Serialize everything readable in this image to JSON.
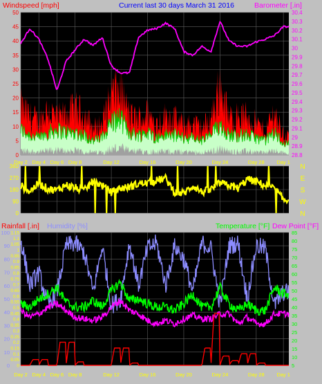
{
  "header": {
    "wind_label": "Windspeed [mph]",
    "title": "Current last 30 days March 31 2016",
    "baro_label": "Barometer [.in]"
  },
  "colors": {
    "background": "#c0c0c0",
    "plot_bg": "#000000",
    "grid": "#606060",
    "wind_gust": "#ff0000",
    "wind_avg": "#c8ffc8",
    "wind_avg_line": "#00cc00",
    "wind_low": "#a0a0a0",
    "baro": "#ff00ff",
    "dir": "#ffff00",
    "rain": "#ff0000",
    "humidity": "#8c8cff",
    "temp": "#00ff00",
    "dew": "#ff00ff",
    "day_label": "#ffff00",
    "wind_axis": "#ff0000",
    "baro_axis": "#ff00ff"
  },
  "chart_data": [
    {
      "type": "line",
      "name": "wind-baro",
      "title": "Current last 30 days March 31 2016",
      "ylabel_left": "Windspeed [mph]",
      "ylabel_right": "Barometer [.in]",
      "ylim_left": [
        0,
        50
      ],
      "yticks_left": [
        "0",
        "5",
        "10",
        "15",
        "20",
        "25",
        "30",
        "35",
        "40",
        "45",
        "50"
      ],
      "ylim_right": [
        28.8,
        30.4
      ],
      "yticks_right": [
        "28.8",
        "28.9",
        "29",
        "29.1",
        "29.2",
        "29.3",
        "29.4",
        "29.5",
        "29.6",
        "29.7",
        "29.8",
        "29.9",
        "30",
        "30.1",
        "30.2",
        "30.3",
        "30.4"
      ],
      "x_day_labels": [
        "Day 2",
        "Day 4",
        "Day 6",
        "Day 8",
        "Day 12",
        "Day 16",
        "Day 20",
        "Day 24",
        "Day 28",
        "Day 1"
      ],
      "x_day_index": [
        0,
        2,
        4,
        6,
        10,
        14,
        18,
        22,
        26,
        29
      ],
      "series": [
        {
          "key": "gust",
          "x": [
            0,
            1,
            2,
            3,
            4,
            5,
            6,
            7,
            8,
            9,
            10,
            11,
            12,
            13,
            14,
            15,
            16,
            17,
            18,
            19,
            20,
            21,
            22,
            23,
            24,
            25,
            26,
            27,
            28,
            29
          ],
          "values": [
            20,
            16,
            14,
            19,
            15,
            17,
            19,
            17,
            11,
            13,
            25,
            27,
            16,
            15,
            17,
            13,
            16,
            15,
            12,
            13,
            11,
            15,
            29,
            15,
            16,
            16,
            13,
            10,
            18,
            8
          ]
        },
        {
          "key": "avg",
          "x": [
            0,
            1,
            2,
            3,
            4,
            5,
            6,
            7,
            8,
            9,
            10,
            11,
            12,
            13,
            14,
            15,
            16,
            17,
            18,
            19,
            20,
            21,
            22,
            23,
            24,
            25,
            26,
            27,
            28,
            29
          ],
          "values": [
            9,
            7,
            6,
            8,
            9,
            8,
            8,
            7,
            5,
            6,
            12,
            13,
            8,
            7,
            8,
            6,
            7,
            7,
            6,
            6,
            5,
            7,
            11,
            7,
            7,
            7,
            6,
            5,
            8,
            4
          ]
        },
        {
          "key": "baro",
          "x": [
            0,
            1,
            2,
            3,
            4,
            5,
            6,
            7,
            8,
            9,
            10,
            11,
            12,
            13,
            14,
            15,
            16,
            17,
            18,
            19,
            20,
            21,
            22,
            23,
            24,
            25,
            26,
            27,
            28,
            29
          ],
          "values": [
            30.05,
            30.22,
            30.1,
            29.88,
            29.52,
            29.85,
            29.98,
            30.1,
            30.03,
            30.12,
            29.8,
            29.72,
            29.72,
            30.12,
            30.2,
            30.22,
            30.28,
            30.22,
            29.96,
            29.92,
            30.02,
            29.96,
            30.3,
            30.08,
            30.02,
            30.02,
            30.07,
            30.1,
            30.14,
            30.24
          ]
        }
      ]
    },
    {
      "type": "scatter",
      "name": "wind-direction",
      "ylim": [
        0,
        360
      ],
      "yticks": [
        "0",
        "90",
        "180",
        "270",
        "360"
      ],
      "compass": [
        "N",
        "W",
        "S",
        "E",
        "N"
      ],
      "x": [
        0,
        1,
        2,
        3,
        4,
        5,
        6,
        7,
        8,
        9,
        10,
        11,
        12,
        13,
        14,
        15,
        16,
        17,
        18,
        19,
        20,
        21,
        22,
        23,
        24,
        25,
        26,
        27,
        28,
        29
      ],
      "values": [
        210,
        165,
        230,
        185,
        175,
        215,
        195,
        170,
        245,
        210,
        160,
        190,
        200,
        225,
        230,
        250,
        265,
        160,
        150,
        210,
        160,
        180,
        230,
        210,
        190,
        260,
        240,
        210,
        190,
        100
      ]
    },
    {
      "type": "line",
      "name": "rain-humidity-temp",
      "ylabel_rain": "Rainfall [.in]",
      "ylabel_humidity": "Humidity [%]",
      "ylabel_temp": "Temperature [°F]",
      "ylabel_dew": "Dew Point [°F]",
      "ylim_humidity": [
        0,
        100
      ],
      "yticks_humidity": [
        "0",
        "10",
        "20",
        "30",
        "40",
        "50",
        "60",
        "70",
        "80",
        "90",
        "100"
      ],
      "ylim_rain": [
        0,
        1.15
      ],
      "yticks_rain": [
        "0",
        "0.05",
        "0.1",
        "0.15",
        "0.2",
        "0.25",
        "0.3",
        "0.35",
        "0.4",
        "0.45",
        "0.5",
        "0.55",
        "0.6",
        "0.65",
        "0.7",
        "0.75",
        "0.8",
        "0.85",
        "0.9",
        "0.95",
        "1",
        "1.05",
        "1.1",
        "1.15"
      ],
      "ylim_temp": [
        5,
        85
      ],
      "yticks_temp": [
        "5",
        "10",
        "15",
        "20",
        "25",
        "30",
        "35",
        "40",
        "45",
        "50",
        "55",
        "60",
        "65",
        "70",
        "75",
        "80",
        "85"
      ],
      "x_day_labels": [
        "Day 2",
        "Day 4",
        "Day 6",
        "Day 8",
        "Day 12",
        "Day 16",
        "Day 20",
        "Day 24",
        "Day 28",
        "Day 1"
      ],
      "x_day_index": [
        0,
        2,
        4,
        6,
        10,
        14,
        18,
        22,
        26,
        29
      ],
      "series": [
        {
          "key": "humidity",
          "x": [
            0,
            1,
            2,
            3,
            4,
            5,
            6,
            7,
            8,
            9,
            10,
            11,
            12,
            13,
            14,
            15,
            16,
            17,
            18,
            19,
            20,
            21,
            22,
            23,
            24,
            25,
            26,
            27,
            28,
            29
          ],
          "values": [
            95,
            60,
            70,
            45,
            55,
            90,
            92,
            85,
            55,
            90,
            45,
            50,
            92,
            60,
            88,
            92,
            60,
            90,
            80,
            55,
            92,
            88,
            45,
            90,
            92,
            50,
            90,
            88,
            45,
            55
          ]
        },
        {
          "key": "temp",
          "x": [
            0,
            1,
            2,
            3,
            4,
            5,
            6,
            7,
            8,
            9,
            10,
            11,
            12,
            13,
            14,
            15,
            16,
            17,
            18,
            19,
            20,
            21,
            22,
            23,
            24,
            25,
            26,
            27,
            28,
            29
          ],
          "values": [
            42,
            40,
            45,
            48,
            52,
            43,
            40,
            40,
            44,
            40,
            50,
            55,
            44,
            45,
            42,
            40,
            40,
            38,
            42,
            48,
            40,
            40,
            52,
            42,
            38,
            42,
            38,
            38,
            52,
            48
          ]
        },
        {
          "key": "dew",
          "x": [
            0,
            1,
            2,
            3,
            4,
            5,
            6,
            7,
            8,
            9,
            10,
            11,
            12,
            13,
            14,
            15,
            16,
            17,
            18,
            19,
            20,
            21,
            22,
            23,
            24,
            25,
            26,
            27,
            28,
            29
          ],
          "values": [
            38,
            34,
            36,
            40,
            42,
            38,
            34,
            33,
            32,
            34,
            40,
            44,
            38,
            36,
            32,
            30,
            32,
            30,
            33,
            35,
            33,
            33,
            36,
            36,
            30,
            34,
            30,
            30,
            36,
            36
          ]
        },
        {
          "key": "rain",
          "x": [
            0,
            1,
            2,
            3,
            4,
            5,
            6,
            7,
            8,
            9,
            10,
            11,
            12,
            13,
            14,
            15,
            16,
            17,
            18,
            19,
            20,
            21,
            22,
            23,
            24,
            25,
            26,
            27,
            28,
            29
          ],
          "values": [
            0,
            0.05,
            0.05,
            0,
            0.2,
            0.2,
            0.03,
            0,
            0,
            0,
            0.15,
            0.15,
            0.02,
            0,
            0,
            0,
            0,
            0,
            0,
            0,
            0.15,
            0.45,
            0.08,
            0.04,
            0.1,
            0.1,
            0.02,
            0,
            0,
            0
          ]
        }
      ]
    }
  ]
}
